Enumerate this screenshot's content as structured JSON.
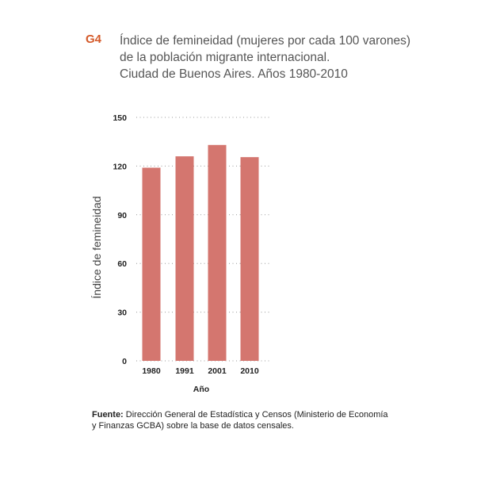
{
  "header": {
    "figure_id": "G4",
    "title_lines": [
      "Índice de femineidad (mujeres por cada 100 varones)",
      "de la población migrante internacional.",
      "Ciudad de Buenos  Aires. Años 1980-2010"
    ]
  },
  "chart_data": {
    "type": "bar",
    "categories": [
      "1980",
      "1991",
      "2001",
      "2010"
    ],
    "values": [
      119,
      126,
      133,
      125.5
    ],
    "ylim": [
      0,
      150
    ],
    "yticks": [
      "0",
      "30",
      "60",
      "90",
      "120",
      "150"
    ],
    "xlabel": "Año",
    "ylabel": "Índice de femineidad",
    "grid": true,
    "bar_color": "#d4766f",
    "grid_color": "#999999"
  },
  "source": {
    "label": "Fuente:",
    "text_lines": [
      "Dirección General de Estadística y Censos (Ministerio de Economía",
      "y Finanzas GCBA) sobre la base de datos censales."
    ]
  }
}
